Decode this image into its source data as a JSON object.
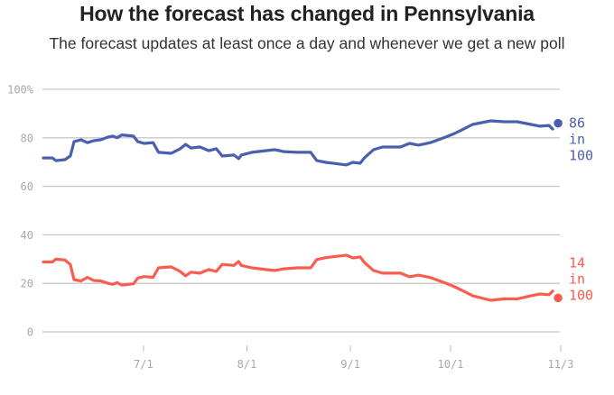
{
  "chart_data": {
    "type": "line",
    "title": "How the forecast has changed in Pennsylvania",
    "subtitle": "The forecast updates at least once a day and whenever we get a new poll",
    "xlabel": "",
    "ylabel": "",
    "ylim": [
      0,
      100
    ],
    "y_ticks": [
      {
        "value": 100,
        "label": "100%"
      },
      {
        "value": 80,
        "label": "80"
      },
      {
        "value": 60,
        "label": "60"
      },
      {
        "value": 40,
        "label": "40"
      },
      {
        "value": 20,
        "label": "20"
      },
      {
        "value": 0,
        "label": "0"
      }
    ],
    "x_range_days": [
      0,
      155
    ],
    "x_ticks": [
      {
        "day": 30,
        "label": "7/1"
      },
      {
        "day": 61,
        "label": "8/1"
      },
      {
        "day": 92,
        "label": "9/1"
      },
      {
        "day": 122,
        "label": "10/1"
      },
      {
        "day": 155,
        "label": "11/3"
      }
    ],
    "grid": true,
    "legend": "none",
    "x_unit": "days since June 1",
    "series": [
      {
        "name": "blue",
        "color": "#4a5fad",
        "end_value": 86,
        "end_label": [
          "86",
          "in",
          "100"
        ],
        "points": [
          [
            0,
            71.7
          ],
          [
            2.7,
            71.7
          ],
          [
            3.8,
            70.6
          ],
          [
            6.5,
            71.0
          ],
          [
            8.1,
            72.5
          ],
          [
            9.2,
            78.4
          ],
          [
            11.3,
            79.2
          ],
          [
            13.2,
            78.0
          ],
          [
            15.1,
            78.8
          ],
          [
            17.2,
            79.2
          ],
          [
            19.4,
            80.3
          ],
          [
            20.8,
            80.7
          ],
          [
            22.1,
            80.0
          ],
          [
            23.5,
            81.2
          ],
          [
            27.0,
            80.7
          ],
          [
            28.3,
            78.4
          ],
          [
            30.2,
            77.7
          ],
          [
            32.9,
            78.0
          ],
          [
            34.5,
            74.0
          ],
          [
            38.3,
            73.6
          ],
          [
            41.0,
            75.5
          ],
          [
            42.6,
            77.3
          ],
          [
            44.2,
            75.8
          ],
          [
            46.9,
            76.2
          ],
          [
            49.6,
            74.7
          ],
          [
            51.8,
            75.5
          ],
          [
            53.6,
            72.5
          ],
          [
            57.1,
            72.9
          ],
          [
            58.5,
            71.4
          ],
          [
            59.3,
            72.9
          ],
          [
            62.5,
            74.0
          ],
          [
            66.6,
            74.7
          ],
          [
            69.3,
            75.1
          ],
          [
            72.0,
            74.3
          ],
          [
            76.0,
            74.0
          ],
          [
            80.1,
            74.0
          ],
          [
            81.9,
            70.6
          ],
          [
            84.6,
            69.9
          ],
          [
            90.8,
            68.8
          ],
          [
            92.7,
            69.9
          ],
          [
            94.9,
            69.5
          ],
          [
            96.2,
            71.7
          ],
          [
            98.9,
            75.1
          ],
          [
            101.6,
            76.2
          ],
          [
            107.0,
            76.2
          ],
          [
            109.7,
            77.7
          ],
          [
            112.4,
            77.0
          ],
          [
            115.9,
            78.0
          ],
          [
            120.5,
            80.3
          ],
          [
            123.2,
            81.8
          ],
          [
            125.9,
            83.6
          ],
          [
            128.6,
            85.5
          ],
          [
            134.0,
            87.0
          ],
          [
            138.0,
            86.6
          ],
          [
            142.0,
            86.6
          ],
          [
            146.1,
            85.5
          ],
          [
            148.8,
            84.8
          ],
          [
            151.5,
            85.1
          ],
          [
            152.6,
            83.6
          ],
          [
            153.4,
            86.0
          ]
        ]
      },
      {
        "name": "red",
        "color": "#f95d4f",
        "end_value": 14,
        "end_label": [
          "14",
          "in",
          "100"
        ],
        "points": [
          [
            0,
            28.8
          ],
          [
            2.7,
            28.8
          ],
          [
            3.8,
            30.0
          ],
          [
            6.5,
            29.6
          ],
          [
            8.1,
            27.8
          ],
          [
            9.2,
            21.5
          ],
          [
            11.3,
            21.0
          ],
          [
            13.2,
            22.5
          ],
          [
            15.1,
            21.2
          ],
          [
            17.2,
            21.0
          ],
          [
            19.4,
            20.0
          ],
          [
            20.8,
            19.6
          ],
          [
            22.1,
            20.3
          ],
          [
            23.5,
            19.3
          ],
          [
            27.0,
            19.8
          ],
          [
            28.3,
            22.2
          ],
          [
            30.2,
            22.8
          ],
          [
            32.9,
            22.5
          ],
          [
            34.5,
            26.4
          ],
          [
            38.3,
            26.8
          ],
          [
            41.0,
            24.9
          ],
          [
            42.6,
            23.1
          ],
          [
            44.2,
            24.6
          ],
          [
            46.9,
            24.2
          ],
          [
            49.6,
            25.7
          ],
          [
            51.8,
            24.9
          ],
          [
            53.6,
            27.8
          ],
          [
            57.1,
            27.4
          ],
          [
            58.5,
            29.0
          ],
          [
            59.3,
            27.4
          ],
          [
            62.5,
            26.4
          ],
          [
            66.6,
            25.7
          ],
          [
            69.3,
            25.3
          ],
          [
            72.0,
            26.0
          ],
          [
            76.0,
            26.4
          ],
          [
            80.1,
            26.4
          ],
          [
            81.9,
            29.8
          ],
          [
            84.6,
            30.6
          ],
          [
            90.8,
            31.6
          ],
          [
            92.7,
            30.5
          ],
          [
            94.9,
            30.9
          ],
          [
            96.2,
            28.6
          ],
          [
            98.9,
            25.3
          ],
          [
            101.6,
            24.2
          ],
          [
            107.0,
            24.2
          ],
          [
            109.7,
            22.7
          ],
          [
            112.4,
            23.4
          ],
          [
            115.9,
            22.4
          ],
          [
            120.5,
            20.1
          ],
          [
            123.2,
            18.6
          ],
          [
            125.9,
            16.8
          ],
          [
            128.6,
            14.9
          ],
          [
            134.0,
            13.0
          ],
          [
            138.0,
            13.6
          ],
          [
            142.0,
            13.6
          ],
          [
            146.1,
            14.9
          ],
          [
            148.8,
            15.6
          ],
          [
            151.5,
            15.3
          ],
          [
            152.6,
            16.8
          ],
          [
            153.4,
            14.0
          ]
        ]
      }
    ]
  }
}
